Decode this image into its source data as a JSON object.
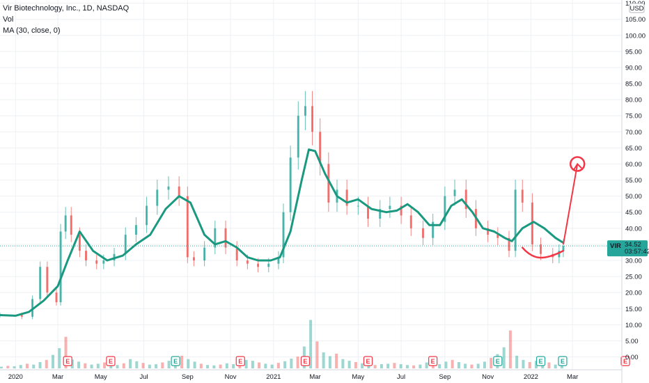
{
  "legend": {
    "title": "Vir Biotechnology, Inc., 1D, NASDAQ",
    "vol": "Vol",
    "ma": "MA (30, close, 0)"
  },
  "currency": "USD",
  "price_tag": {
    "symbol": "VIR",
    "price": "34.52",
    "countdown": "03:57:42"
  },
  "colors": {
    "up": "#26a69a",
    "down": "#ef5350",
    "ma": "#1a9980",
    "annotation": "#f23645",
    "earnings_red": "#f23645",
    "earnings_green": "#26a69a",
    "grid": "#eef0f3"
  },
  "earnings_markers": [
    {
      "date": "2020-03",
      "label": "E",
      "color": "red"
    },
    {
      "date": "2020-05",
      "label": "E",
      "color": "red"
    },
    {
      "date": "2020-08",
      "label": "E",
      "color": "green"
    },
    {
      "date": "2020-11",
      "label": "E",
      "color": "red"
    },
    {
      "date": "2021-02",
      "label": "E",
      "color": "red"
    },
    {
      "date": "2021-05",
      "label": "E",
      "color": "red"
    },
    {
      "date": "2021-08",
      "label": "E",
      "color": "red"
    },
    {
      "date": "2021-11",
      "label": "E",
      "color": "green"
    },
    {
      "date": "2022-01",
      "label": "E",
      "color": "green"
    },
    {
      "date": "2022-02",
      "label": "E",
      "color": "green"
    },
    {
      "date": "2022-05",
      "label": "E",
      "color": "red"
    }
  ],
  "chart_data": {
    "type": "line",
    "title": "Vir Biotechnology, Inc., 1D, NASDAQ",
    "x_ticks": [
      "2020",
      "Mar",
      "May",
      "Jul",
      "Sep",
      "Nov",
      "2021",
      "Mar",
      "May",
      "Jul",
      "Sep",
      "Nov",
      "2022",
      "Mar"
    ],
    "y_ticks": [
      "110.00",
      "105.00",
      "100.00",
      "95.00",
      "90.00",
      "85.00",
      "80.00",
      "75.00",
      "70.00",
      "65.00",
      "60.00",
      "55.00",
      "50.00",
      "45.00",
      "40.00",
      "35.00",
      "30.00",
      "25.00",
      "20.00",
      "15.00",
      "10.00",
      "5.00",
      "0.00"
    ],
    "ylim": [
      -4,
      111
    ],
    "x_range": [
      "2019-12-10",
      "2022-05-10"
    ],
    "series": [
      {
        "name": "Price",
        "kind": "price",
        "x": [
          "2019-12-10",
          "2020-01-10",
          "2020-01-25",
          "2020-02-05",
          "2020-02-15",
          "2020-02-28",
          "2020-03-05",
          "2020-03-12",
          "2020-03-20",
          "2020-04-01",
          "2020-04-10",
          "2020-04-25",
          "2020-05-05",
          "2020-05-20",
          "2020-06-05",
          "2020-06-20",
          "2020-07-05",
          "2020-07-20",
          "2020-08-05",
          "2020-08-20",
          "2020-09-01",
          "2020-09-10",
          "2020-09-25",
          "2020-10-10",
          "2020-10-25",
          "2020-11-10",
          "2020-11-25",
          "2020-12-10",
          "2020-12-25",
          "2021-01-08",
          "2021-01-15",
          "2021-01-25",
          "2021-02-05",
          "2021-02-15",
          "2021-02-25",
          "2021-03-08",
          "2021-03-20",
          "2021-04-01",
          "2021-04-15",
          "2021-05-01",
          "2021-05-15",
          "2021-06-01",
          "2021-06-15",
          "2021-07-01",
          "2021-07-15",
          "2021-08-01",
          "2021-08-15",
          "2021-09-01",
          "2021-09-15",
          "2021-10-01",
          "2021-10-15",
          "2021-11-01",
          "2021-11-15",
          "2021-12-01",
          "2021-12-10",
          "2021-12-20",
          "2022-01-03",
          "2022-01-15",
          "2022-02-01",
          "2022-02-10",
          "2022-02-16"
        ],
        "y": [
          13,
          12.5,
          18,
          28,
          20,
          17,
          39,
          44,
          38,
          33,
          30,
          29,
          30,
          32,
          38,
          41,
          47,
          52,
          53,
          50,
          31,
          30,
          34,
          40,
          34,
          30,
          29,
          28,
          29,
          31,
          45,
          62,
          75,
          78,
          70,
          60,
          48,
          52,
          47,
          47,
          43,
          46,
          47,
          44,
          40,
          37,
          42,
          50,
          52,
          46,
          40,
          38,
          37,
          33,
          52,
          48,
          35,
          32,
          31,
          33,
          34.52
        ]
      },
      {
        "name": "MA (30, close, 0)",
        "kind": "ma",
        "x": [
          "2019-12-10",
          "2020-01-01",
          "2020-01-20",
          "2020-02-10",
          "2020-03-01",
          "2020-03-15",
          "2020-04-01",
          "2020-04-20",
          "2020-05-10",
          "2020-06-01",
          "2020-06-20",
          "2020-07-10",
          "2020-08-01",
          "2020-08-20",
          "2020-09-05",
          "2020-09-25",
          "2020-10-10",
          "2020-10-25",
          "2020-11-10",
          "2020-11-25",
          "2020-12-10",
          "2020-12-28",
          "2021-01-10",
          "2021-01-25",
          "2021-02-10",
          "2021-02-20",
          "2021-03-01",
          "2021-03-15",
          "2021-04-01",
          "2021-04-15",
          "2021-05-01",
          "2021-05-20",
          "2021-06-10",
          "2021-06-25",
          "2021-07-10",
          "2021-07-25",
          "2021-08-10",
          "2021-08-25",
          "2021-09-10",
          "2021-09-25",
          "2021-10-10",
          "2021-10-25",
          "2021-11-10",
          "2021-11-25",
          "2021-12-05",
          "2021-12-20",
          "2022-01-05",
          "2022-01-20",
          "2022-02-05",
          "2022-02-16"
        ],
        "y": [
          13,
          12.8,
          14,
          17.5,
          22,
          30,
          39,
          33,
          30,
          31.5,
          35,
          38,
          46,
          50,
          48,
          38,
          35,
          36,
          34,
          31,
          30,
          30,
          31,
          39,
          55,
          64.5,
          64,
          57,
          50,
          48,
          49,
          46,
          45,
          45.5,
          47.5,
          45,
          41,
          41,
          47,
          49,
          45,
          40,
          39,
          37,
          36,
          40,
          42,
          40,
          37,
          35.5
        ]
      }
    ],
    "annotations": [
      {
        "type": "curve",
        "points": [
          [
            "2021-12-20",
            34
          ],
          [
            "2022-01-05",
            30
          ],
          [
            "2022-01-20",
            30
          ],
          [
            "2022-02-16",
            33
          ]
        ]
      },
      {
        "type": "arrow",
        "from": [
          "2022-02-16",
          35
        ],
        "to": [
          "2022-03-08",
          60
        ]
      },
      {
        "type": "circle",
        "center": [
          "2022-03-08",
          60
        ]
      }
    ],
    "volume": {
      "unit": "M",
      "values": [
        0.4,
        0.6,
        0.5,
        0.8,
        1.1,
        0.9,
        1.5,
        2.0,
        3.2,
        4.8,
        7.5,
        2.1,
        1.6,
        1.2,
        0.9,
        1.1,
        1.4,
        1.0,
        0.8,
        1.2,
        2.2,
        1.7,
        1.3,
        0.9,
        1.0,
        1.4,
        1.8,
        2.4,
        3.0,
        2.2,
        1.6,
        1.1,
        0.8,
        0.7,
        0.9,
        1.2,
        1.0,
        1.5,
        2.0,
        1.8,
        1.4,
        1.1,
        0.9,
        1.3,
        1.7,
        2.3,
        2.8,
        5.2,
        11.5,
        6.4,
        3.8,
        2.9,
        3.5,
        2.2,
        1.8,
        1.5,
        1.2,
        0.9,
        0.8,
        1.0,
        1.1,
        1.3,
        1.0,
        0.8,
        0.7,
        0.9,
        1.4,
        1.2,
        1.0,
        1.6,
        2.0,
        1.5,
        1.1,
        0.9,
        1.1,
        1.6,
        2.5,
        3.4,
        5.0,
        9.0,
        3.0,
        2.0,
        1.5,
        1.8,
        2.2,
        1.4,
        0.9,
        0.7
      ]
    }
  }
}
